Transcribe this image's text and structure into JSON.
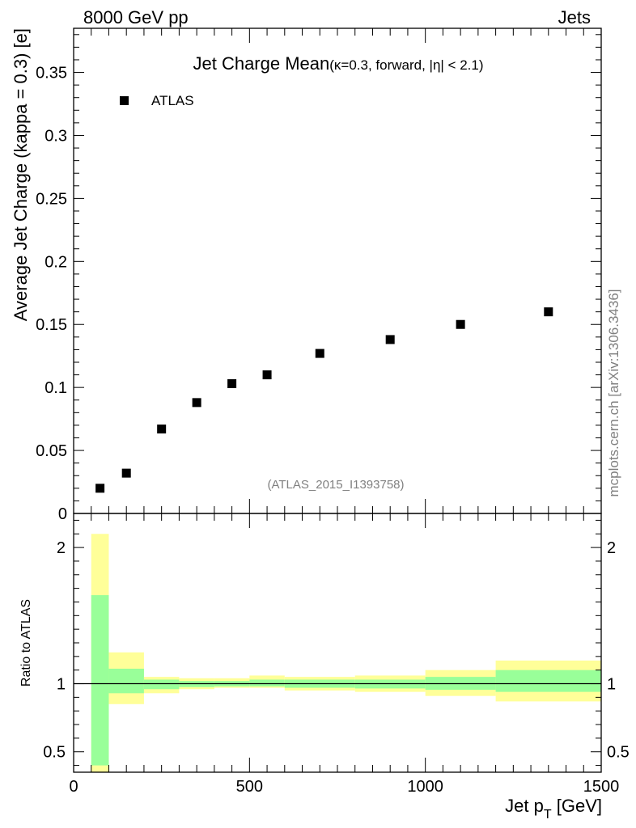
{
  "header": {
    "left": "8000 GeV pp",
    "right": "Jets"
  },
  "side_label": "mcplots.cern.ch [arXiv:1306.3436]",
  "watermark": "(ATLAS_2015_I1393758)",
  "chart_data": [
    {
      "type": "scatter",
      "title": "Jet Charge Mean",
      "title_suffix": "(κ=0.3, forward, |η| < 2.1)",
      "xlabel": "Jet p_T [GeV]",
      "ylabel": "Average Jet Charge (kappa = 0.3) [e]",
      "xlim": [
        0,
        1500
      ],
      "ylim": [
        0,
        0.385
      ],
      "yticks": [
        0,
        0.05,
        0.1,
        0.15,
        0.2,
        0.25,
        0.3,
        0.35
      ],
      "ytick_labels": [
        "0",
        "0.05",
        "0.1",
        "0.15",
        "0.2",
        "0.25",
        "0.3",
        "0.35"
      ],
      "legend": {
        "position": "top-left",
        "entries": [
          {
            "name": "ATLAS",
            "marker": "square",
            "color": "#000000"
          }
        ]
      },
      "series": [
        {
          "name": "ATLAS",
          "x": [
            75,
            150,
            250,
            350,
            450,
            550,
            700,
            900,
            1100,
            1350
          ],
          "y": [
            0.02,
            0.032,
            0.067,
            0.088,
            0.103,
            0.11,
            0.127,
            0.138,
            0.15,
            0.16
          ]
        }
      ]
    },
    {
      "type": "area",
      "ylabel": "Ratio to ATLAS",
      "xlim": [
        0,
        1500
      ],
      "ylim": [
        0.35,
        2.25
      ],
      "xticks": [
        0,
        500,
        1000,
        1500
      ],
      "xtick_labels": [
        "0",
        "500",
        "1000",
        "1500"
      ],
      "yticks": [
        0.5,
        1,
        2
      ],
      "ytick_labels": [
        "0.5",
        "1",
        "2"
      ],
      "reference_line": 1,
      "colors": {
        "inner_band": "#99ff99",
        "outer_band": "#ffff99",
        "line": "#000000"
      },
      "bins": [
        {
          "lo": 50,
          "hi": 100,
          "inner": [
            0.4,
            1.65
          ],
          "outer": [
            0.3,
            2.1
          ]
        },
        {
          "lo": 100,
          "hi": 200,
          "inner": [
            0.93,
            1.11
          ],
          "outer": [
            0.85,
            1.23
          ]
        },
        {
          "lo": 200,
          "hi": 300,
          "inner": [
            0.96,
            1.03
          ],
          "outer": [
            0.93,
            1.05
          ]
        },
        {
          "lo": 300,
          "hi": 400,
          "inner": [
            0.975,
            1.02
          ],
          "outer": [
            0.96,
            1.04
          ]
        },
        {
          "lo": 400,
          "hi": 500,
          "inner": [
            0.98,
            1.02
          ],
          "outer": [
            0.97,
            1.04
          ]
        },
        {
          "lo": 500,
          "hi": 600,
          "inner": [
            0.98,
            1.03
          ],
          "outer": [
            0.97,
            1.06
          ]
        },
        {
          "lo": 600,
          "hi": 800,
          "inner": [
            0.97,
            1.03
          ],
          "outer": [
            0.95,
            1.05
          ]
        },
        {
          "lo": 800,
          "hi": 1000,
          "inner": [
            0.965,
            1.03
          ],
          "outer": [
            0.94,
            1.06
          ]
        },
        {
          "lo": 1000,
          "hi": 1200,
          "inner": [
            0.955,
            1.05
          ],
          "outer": [
            0.91,
            1.1
          ]
        },
        {
          "lo": 1200,
          "hi": 1500,
          "inner": [
            0.94,
            1.1
          ],
          "outer": [
            0.87,
            1.17
          ]
        }
      ]
    }
  ]
}
